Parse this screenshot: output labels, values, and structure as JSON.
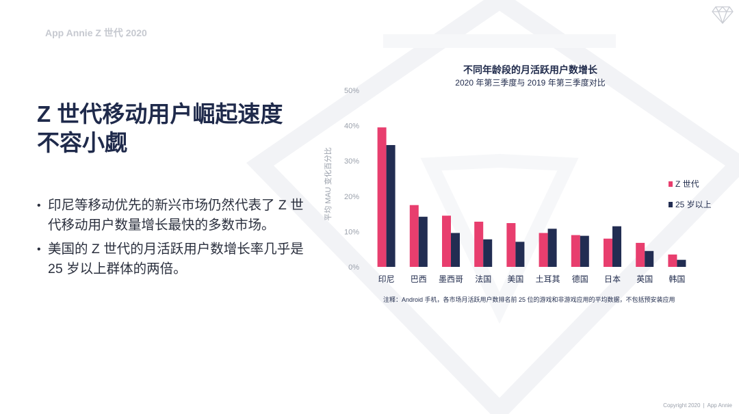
{
  "brand": "App Annie Z 世代 2020",
  "logo": "diamond-logo-icon",
  "headline": [
    "Z 世代移动用户崛起速度",
    "不容小觑"
  ],
  "bullets": [
    "印尼等移动优先的新兴市场仍然代表了 Z 世代移动用户数量增长最快的多数市场。",
    "美国的 Z 世代的月活跃用户数增长率几乎是 25 岁以上群体的两倍。"
  ],
  "chart_data": {
    "type": "bar",
    "title": "不同年龄段的月活跃用户数增长",
    "subtitle": "2020 年第三季度与 2019 年第三季度对比",
    "ylabel": "平均 MAU 变化百分比",
    "xlabel": "",
    "ylim": [
      0,
      50
    ],
    "yticks": [
      0,
      10,
      20,
      30,
      40,
      50
    ],
    "ytick_labels": [
      "0%",
      "10%",
      "20%",
      "30%",
      "40%",
      "50%"
    ],
    "grid": false,
    "legend_position": "right",
    "categories": [
      "印尼",
      "巴西",
      "墨西哥",
      "法国",
      "美国",
      "土耳其",
      "德国",
      "日本",
      "英国",
      "韩国"
    ],
    "series": [
      {
        "name": "Z 世代",
        "color": "#e83e6e",
        "values": [
          39.5,
          17.5,
          14.5,
          12.8,
          12.4,
          9.6,
          9.0,
          8.0,
          6.8,
          3.5
        ]
      },
      {
        "name": "25 岁以上",
        "color": "#222d52",
        "values": [
          34.5,
          14.2,
          9.6,
          7.8,
          7.1,
          10.8,
          8.8,
          11.5,
          4.5,
          2.0
        ]
      }
    ],
    "note": "注释：Android 手机，各市场月活跃用户数排名前 25 位的游戏和非游戏应用的平均数据，不包括预安装应用"
  },
  "footer": {
    "copyright": "Copyright 2020",
    "separator": "|",
    "company": "App Annie"
  }
}
